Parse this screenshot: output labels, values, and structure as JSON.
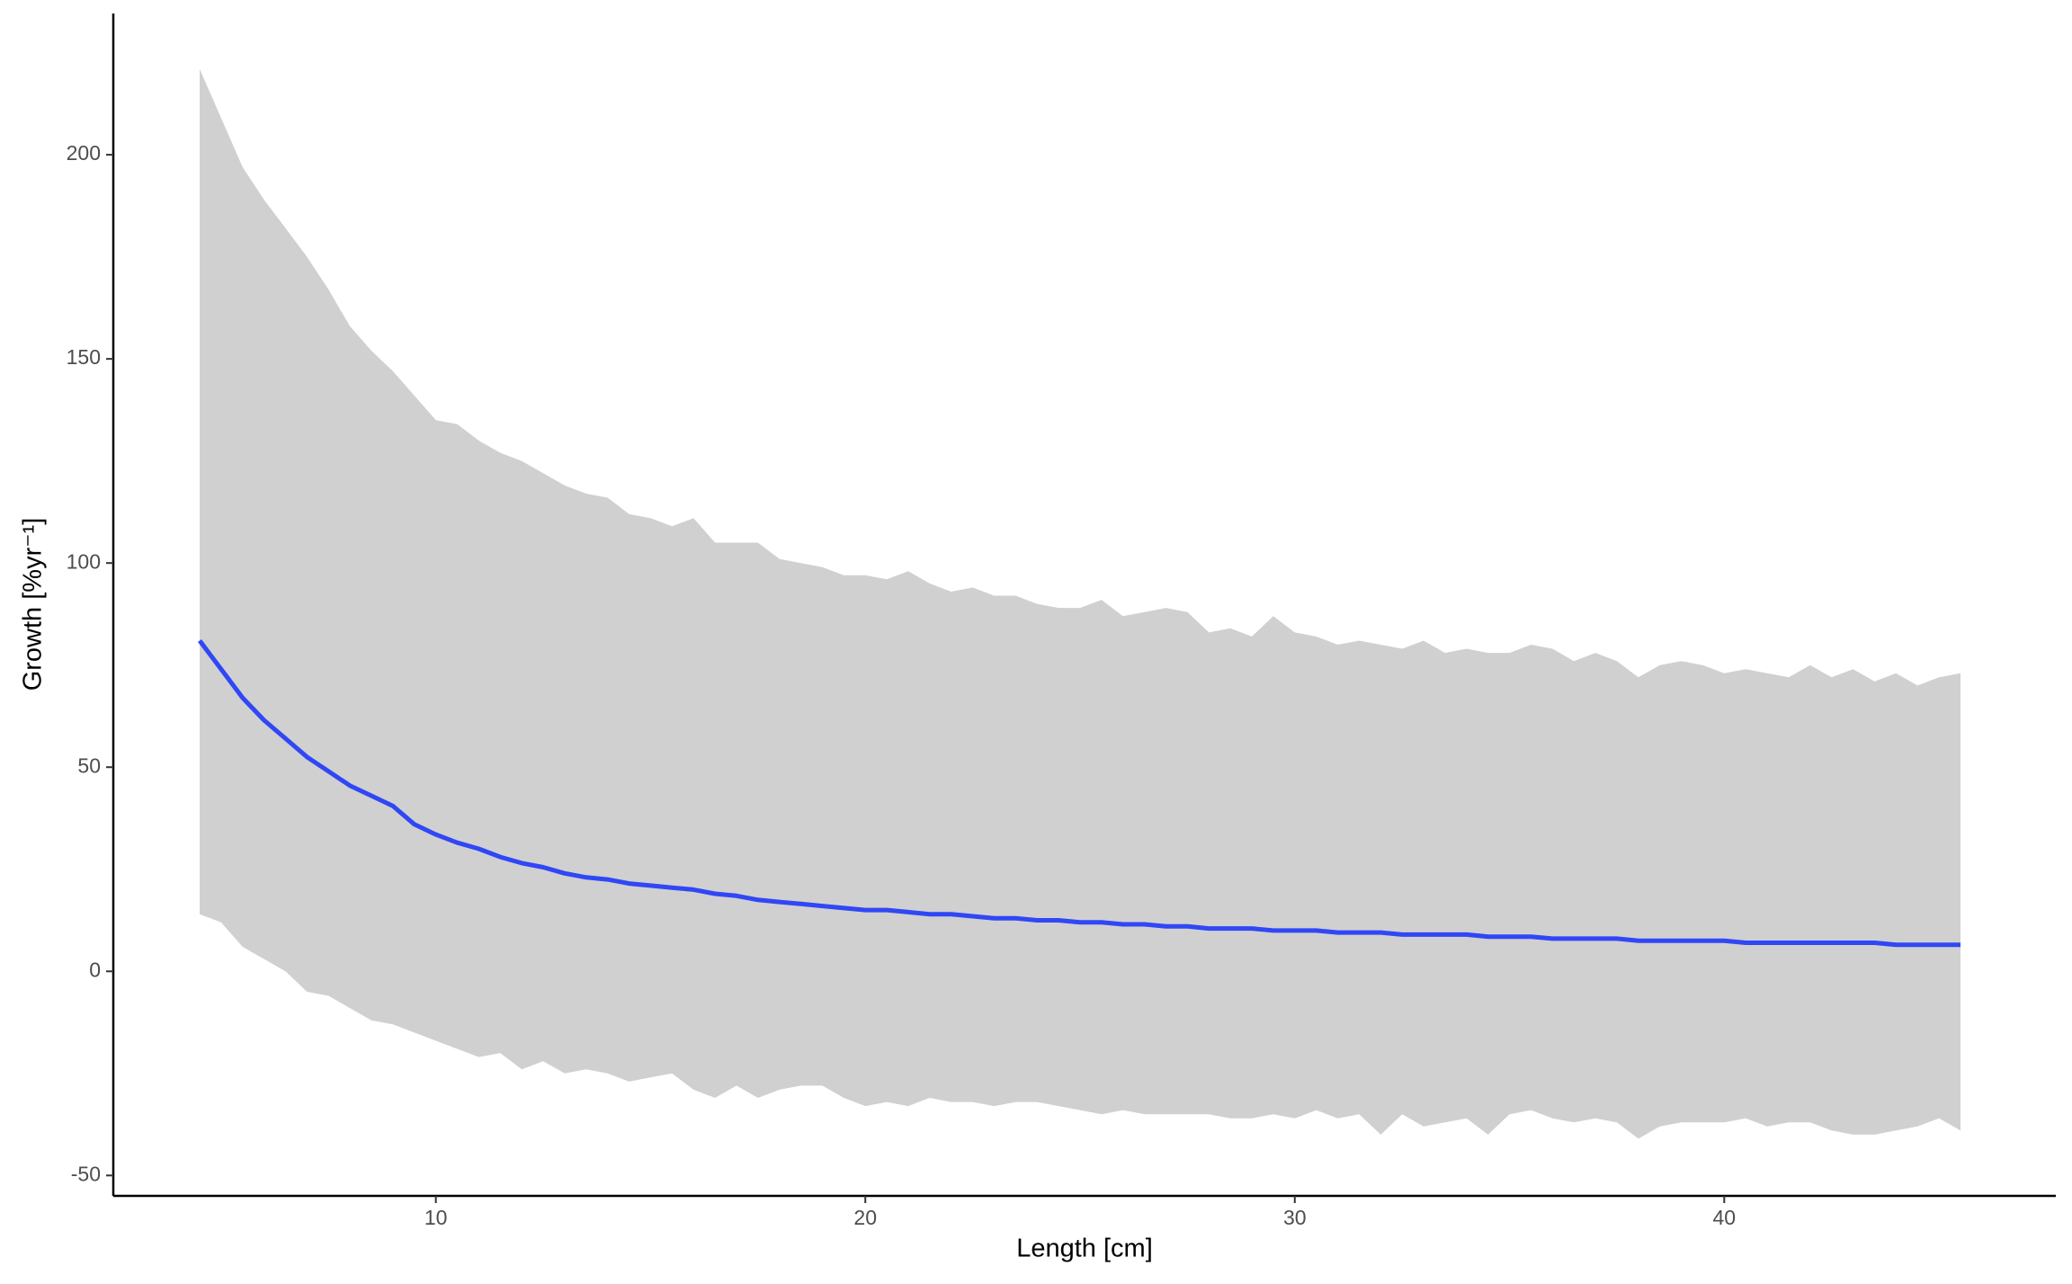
{
  "chart_data": {
    "type": "line_band",
    "x_label": "Length [cm]",
    "y_label": "Growth [%yr⁻¹]",
    "xlim": [
      2.49,
      47.72
    ],
    "ylim": [
      -55,
      234.6
    ],
    "xticks": [
      10,
      20,
      30,
      40
    ],
    "yticks": [
      -50,
      0,
      50,
      100,
      150,
      200
    ],
    "grid": false,
    "line_color": "#3047f5",
    "band_color": "#d0d0d0",
    "x": [
      4.5,
      5,
      5.5,
      6,
      6.5,
      7,
      7.5,
      8,
      8.5,
      9,
      9.5,
      10,
      10.5,
      11,
      11.5,
      12,
      12.5,
      13,
      13.5,
      14,
      14.5,
      15,
      15.5,
      16,
      16.5,
      17,
      17.5,
      18,
      18.5,
      19,
      19.5,
      20,
      20.5,
      21,
      21.5,
      22,
      22.5,
      23,
      23.5,
      24,
      24.5,
      25,
      25.5,
      26,
      26.5,
      27,
      27.5,
      28,
      28.5,
      29,
      29.5,
      30,
      30.5,
      31,
      31.5,
      32,
      32.5,
      33,
      33.5,
      34,
      34.5,
      35,
      35.5,
      36,
      36.5,
      37,
      37.5,
      38,
      38.5,
      39,
      39.5,
      40,
      40.5,
      41,
      41.5,
      42,
      42.5,
      43,
      43.5,
      44,
      44.5,
      45,
      45.5
    ],
    "y": [
      81,
      74,
      67,
      61.5,
      57,
      52.5,
      49,
      45.5,
      43,
      40.5,
      36,
      33.5,
      31.5,
      30,
      28,
      26.5,
      25.5,
      24,
      23,
      22.5,
      21.5,
      21,
      20.5,
      20,
      19,
      18.5,
      17.5,
      17,
      16.5,
      16,
      15.5,
      15,
      15,
      14.5,
      14,
      14,
      13.5,
      13,
      13,
      12.5,
      12.5,
      12,
      12,
      11.5,
      11.5,
      11,
      11,
      10.5,
      10.5,
      10.5,
      10,
      10,
      10,
      9.5,
      9.5,
      9.5,
      9,
      9,
      9,
      9,
      8.5,
      8.5,
      8.5,
      8,
      8,
      8,
      8,
      7.5,
      7.5,
      7.5,
      7.5,
      7.5,
      7,
      7,
      7,
      7,
      7,
      7,
      7,
      6.5,
      6.5,
      6.5,
      6.5
    ],
    "band_upper": [
      221,
      209,
      197,
      189,
      182,
      175,
      167,
      158,
      152,
      147,
      141,
      135,
      134,
      130,
      127,
      125,
      122,
      119,
      117,
      116,
      112,
      111,
      109,
      111,
      105,
      105,
      105,
      101,
      100,
      99,
      97,
      97,
      96,
      98,
      95,
      93,
      94,
      92,
      92,
      90,
      89,
      89,
      91,
      87,
      88,
      89,
      88,
      83,
      84,
      82,
      87,
      83,
      82,
      80,
      81,
      80,
      79,
      81,
      78,
      79,
      78,
      78,
      80,
      79,
      76,
      78,
      76,
      72,
      75,
      76,
      75,
      73,
      74,
      73,
      72,
      75,
      72,
      74,
      71,
      73,
      70,
      72,
      73
    ],
    "band_lower": [
      14,
      12,
      6,
      3,
      0,
      -5,
      -6,
      -9,
      -12,
      -13,
      -15,
      -17,
      -19,
      -21,
      -20,
      -24,
      -22,
      -25,
      -24,
      -25,
      -27,
      -26,
      -25,
      -29,
      -31,
      -28,
      -31,
      -29,
      -28,
      -28,
      -31,
      -33,
      -32,
      -33,
      -31,
      -32,
      -32,
      -33,
      -32,
      -32,
      -33,
      -34,
      -35,
      -34,
      -35,
      -35,
      -35,
      -35,
      -36,
      -36,
      -35,
      -36,
      -34,
      -36,
      -35,
      -40,
      -35,
      -38,
      -37,
      -36,
      -40,
      -35,
      -34,
      -36,
      -37,
      -36,
      -37,
      -41,
      -38,
      -37,
      -37,
      -37,
      -36,
      -38,
      -37,
      -37,
      -39,
      -40,
      -40,
      -39,
      -38,
      -36,
      -39
    ]
  }
}
